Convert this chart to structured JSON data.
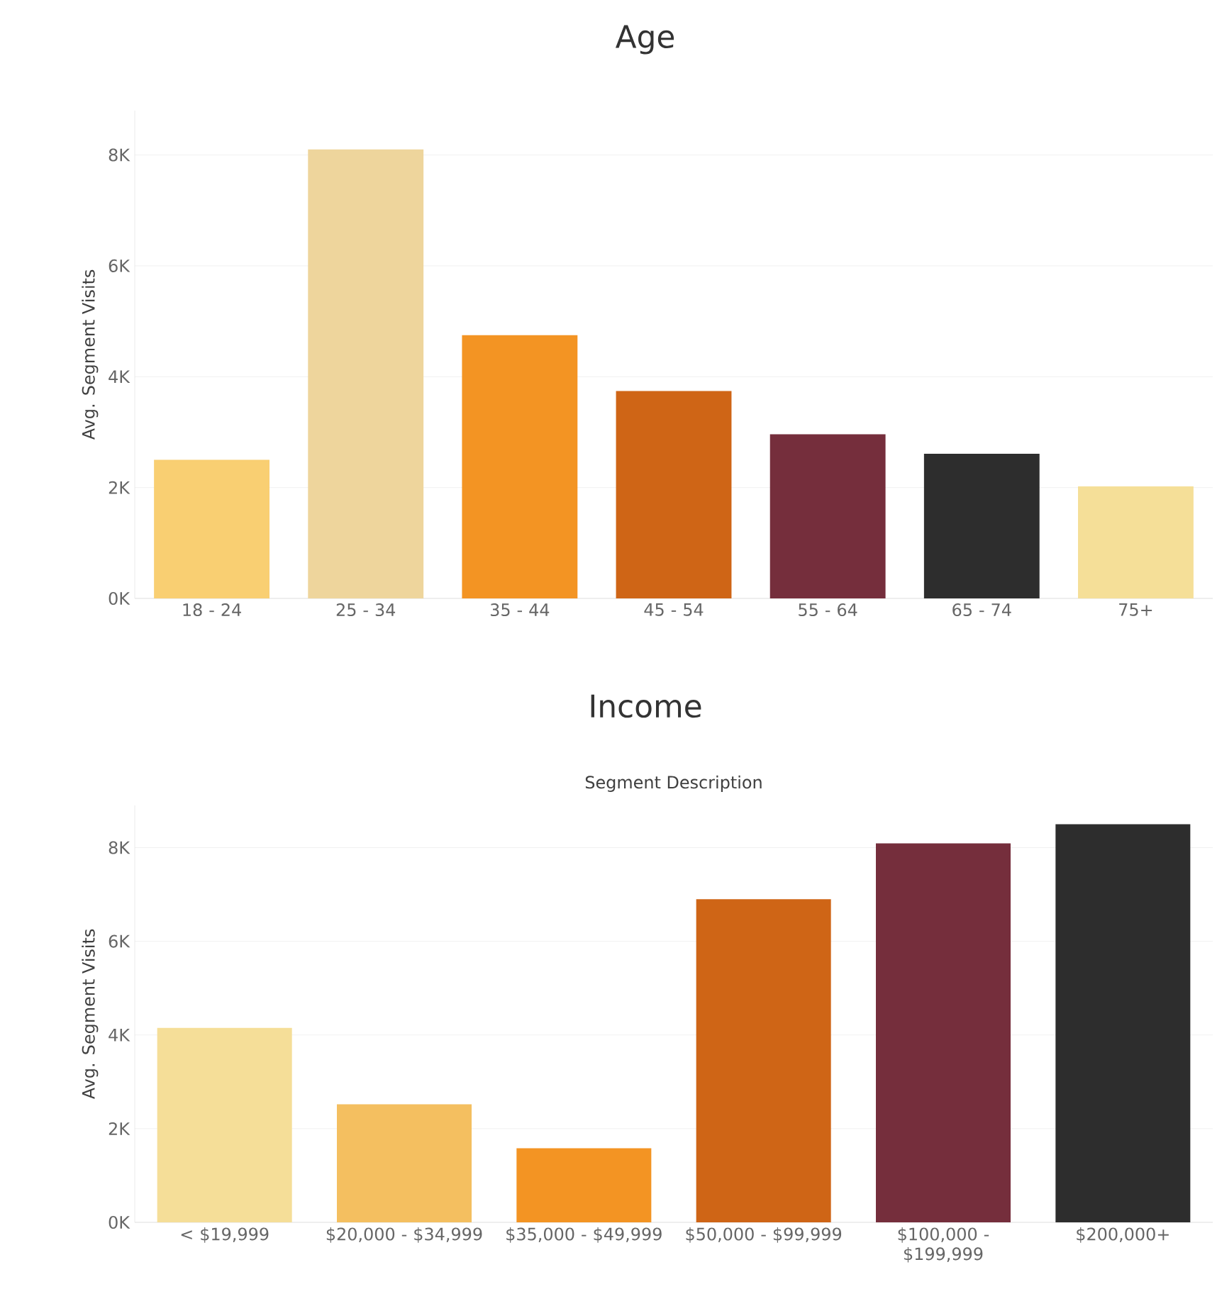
{
  "chart_data": [
    {
      "type": "bar",
      "title": "Age",
      "ylabel": "Avg. Segment Visits",
      "categories": [
        "18 - 24",
        "25 - 34",
        "35 - 44",
        "45 - 54",
        "55 - 64",
        "65 - 74",
        "75+"
      ],
      "values": [
        2500,
        8100,
        4750,
        3740,
        2960,
        2610,
        2020
      ],
      "colors": [
        "#f9cf72",
        "#eed59c",
        "#f39423",
        "#cf6516",
        "#752e3c",
        "#2d2d2d",
        "#f5df98"
      ],
      "ylim": [
        0,
        8800
      ],
      "yticks": [
        {
          "value": 0,
          "label": "0K"
        },
        {
          "value": 2000,
          "label": "2K"
        },
        {
          "value": 4000,
          "label": "4K"
        },
        {
          "value": 6000,
          "label": "6K"
        },
        {
          "value": 8000,
          "label": "8K"
        }
      ],
      "grid": "y"
    },
    {
      "type": "bar",
      "title": "Income",
      "xlabel": "Segment Description",
      "ylabel": "Avg. Segment Visits",
      "categories": [
        "< $19,999",
        "$20,000 - $34,999",
        "$35,000 - $49,999",
        "$50,000 - $99,999",
        "$100,000 - $199,999",
        "$200,000+"
      ],
      "values": [
        4150,
        2520,
        1580,
        6900,
        8090,
        8500
      ],
      "colors": [
        "#f5de98",
        "#f4bf60",
        "#f39423",
        "#cf6516",
        "#752e3c",
        "#2d2d2d"
      ],
      "ylim": [
        0,
        8900
      ],
      "yticks": [
        {
          "value": 0,
          "label": "0K"
        },
        {
          "value": 2000,
          "label": "2K"
        },
        {
          "value": 4000,
          "label": "4K"
        },
        {
          "value": 6000,
          "label": "6K"
        },
        {
          "value": 8000,
          "label": "8K"
        }
      ],
      "grid": "y"
    }
  ]
}
